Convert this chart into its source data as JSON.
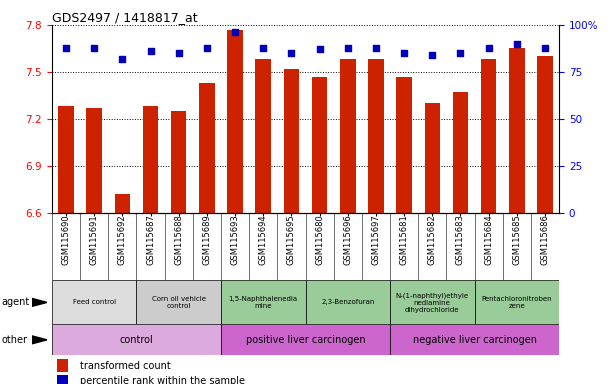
{
  "title": "GDS2497 / 1418817_at",
  "samples": [
    "GSM115690",
    "GSM115691",
    "GSM115692",
    "GSM115687",
    "GSM115688",
    "GSM115689",
    "GSM115693",
    "GSM115694",
    "GSM115695",
    "GSM115680",
    "GSM115696",
    "GSM115697",
    "GSM115681",
    "GSM115682",
    "GSM115683",
    "GSM115684",
    "GSM115685",
    "GSM115686"
  ],
  "bar_values": [
    7.28,
    7.27,
    6.72,
    7.28,
    7.25,
    7.43,
    7.77,
    7.58,
    7.52,
    7.47,
    7.58,
    7.58,
    7.47,
    7.3,
    7.37,
    7.58,
    7.65,
    7.6
  ],
  "percentile_values": [
    88,
    88,
    82,
    86,
    85,
    88,
    96,
    88,
    85,
    87,
    88,
    88,
    85,
    84,
    85,
    88,
    90,
    88
  ],
  "ylim": [
    6.6,
    7.8
  ],
  "yticks": [
    6.6,
    6.9,
    7.2,
    7.5,
    7.8
  ],
  "right_ylim": [
    0,
    100
  ],
  "right_yticks": [
    0,
    25,
    50,
    75,
    100
  ],
  "bar_color": "#cc2200",
  "dot_color": "#0000bb",
  "agent_groups": [
    {
      "label": "Feed control",
      "start": 0,
      "end": 3,
      "color": "#dddddd"
    },
    {
      "label": "Corn oil vehicle\ncontrol",
      "start": 3,
      "end": 6,
      "color": "#cccccc"
    },
    {
      "label": "1,5-Naphthalenedia\nmine",
      "start": 6,
      "end": 9,
      "color": "#99cc99"
    },
    {
      "label": "2,3-Benzofuran",
      "start": 9,
      "end": 12,
      "color": "#99cc99"
    },
    {
      "label": "N-(1-naphthyl)ethyle\nnediamine\ndihydrochloride",
      "start": 12,
      "end": 15,
      "color": "#99cc99"
    },
    {
      "label": "Pentachloronitroben\nzene",
      "start": 15,
      "end": 18,
      "color": "#99cc99"
    }
  ],
  "other_groups": [
    {
      "label": "control",
      "start": 0,
      "end": 6,
      "color": "#ddaadd"
    },
    {
      "label": "positive liver carcinogen",
      "start": 6,
      "end": 12,
      "color": "#cc66cc"
    },
    {
      "label": "negative liver carcinogen",
      "start": 12,
      "end": 18,
      "color": "#cc66cc"
    }
  ],
  "agent_group_colors": [
    "#dddddd",
    "#cccccc",
    "#99cc99",
    "#99cc99",
    "#99cc99",
    "#99cc99"
  ],
  "other_group_colors": [
    "#ddaadd",
    "#cc66cc",
    "#cc66cc"
  ]
}
